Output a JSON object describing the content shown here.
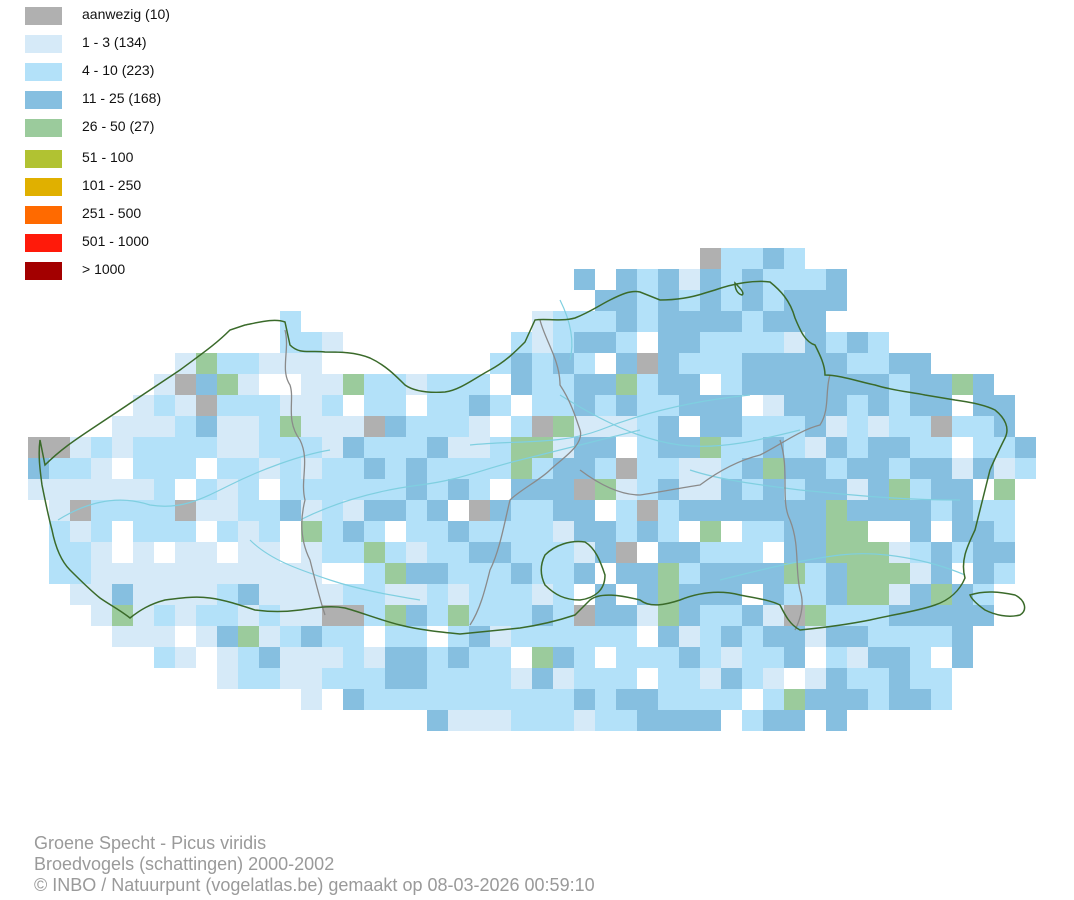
{
  "legend": [
    {
      "label": "aanwezig (10)",
      "color": "#b0b0b0"
    },
    {
      "label": "1 - 3 (134)",
      "color": "#d6eaf8"
    },
    {
      "label": "4 - 10 (223)",
      "color": "#b3e1f9"
    },
    {
      "label": "11 - 25 (168)",
      "color": "#86bfe0"
    },
    {
      "label": "26 - 50 (27)",
      "color": "#9bcb9c"
    },
    {
      "label": "51 - 100",
      "color": "#b1c232"
    },
    {
      "label": "101 - 250",
      "color": "#e0b000"
    },
    {
      "label": "251 - 500",
      "color": "#ff6a00"
    },
    {
      "label": "501 - 1000",
      "color": "#ff1a0a"
    },
    {
      "label": "> 1000",
      "color": "#a30000"
    }
  ],
  "footer": {
    "species": "Groene Specht - Picus viridis",
    "dataset": "Broedvogels (schattingen) 2000-2002",
    "credit": "© INBO / Natuurpunt (vogelatlas.be) gemaakt op 08-03-2026 00:59:10"
  },
  "map": {
    "region_border_color": "#3a6a2a",
    "province_border_color": "#8a8a8a",
    "river_color": "#7fcfe0"
  }
}
